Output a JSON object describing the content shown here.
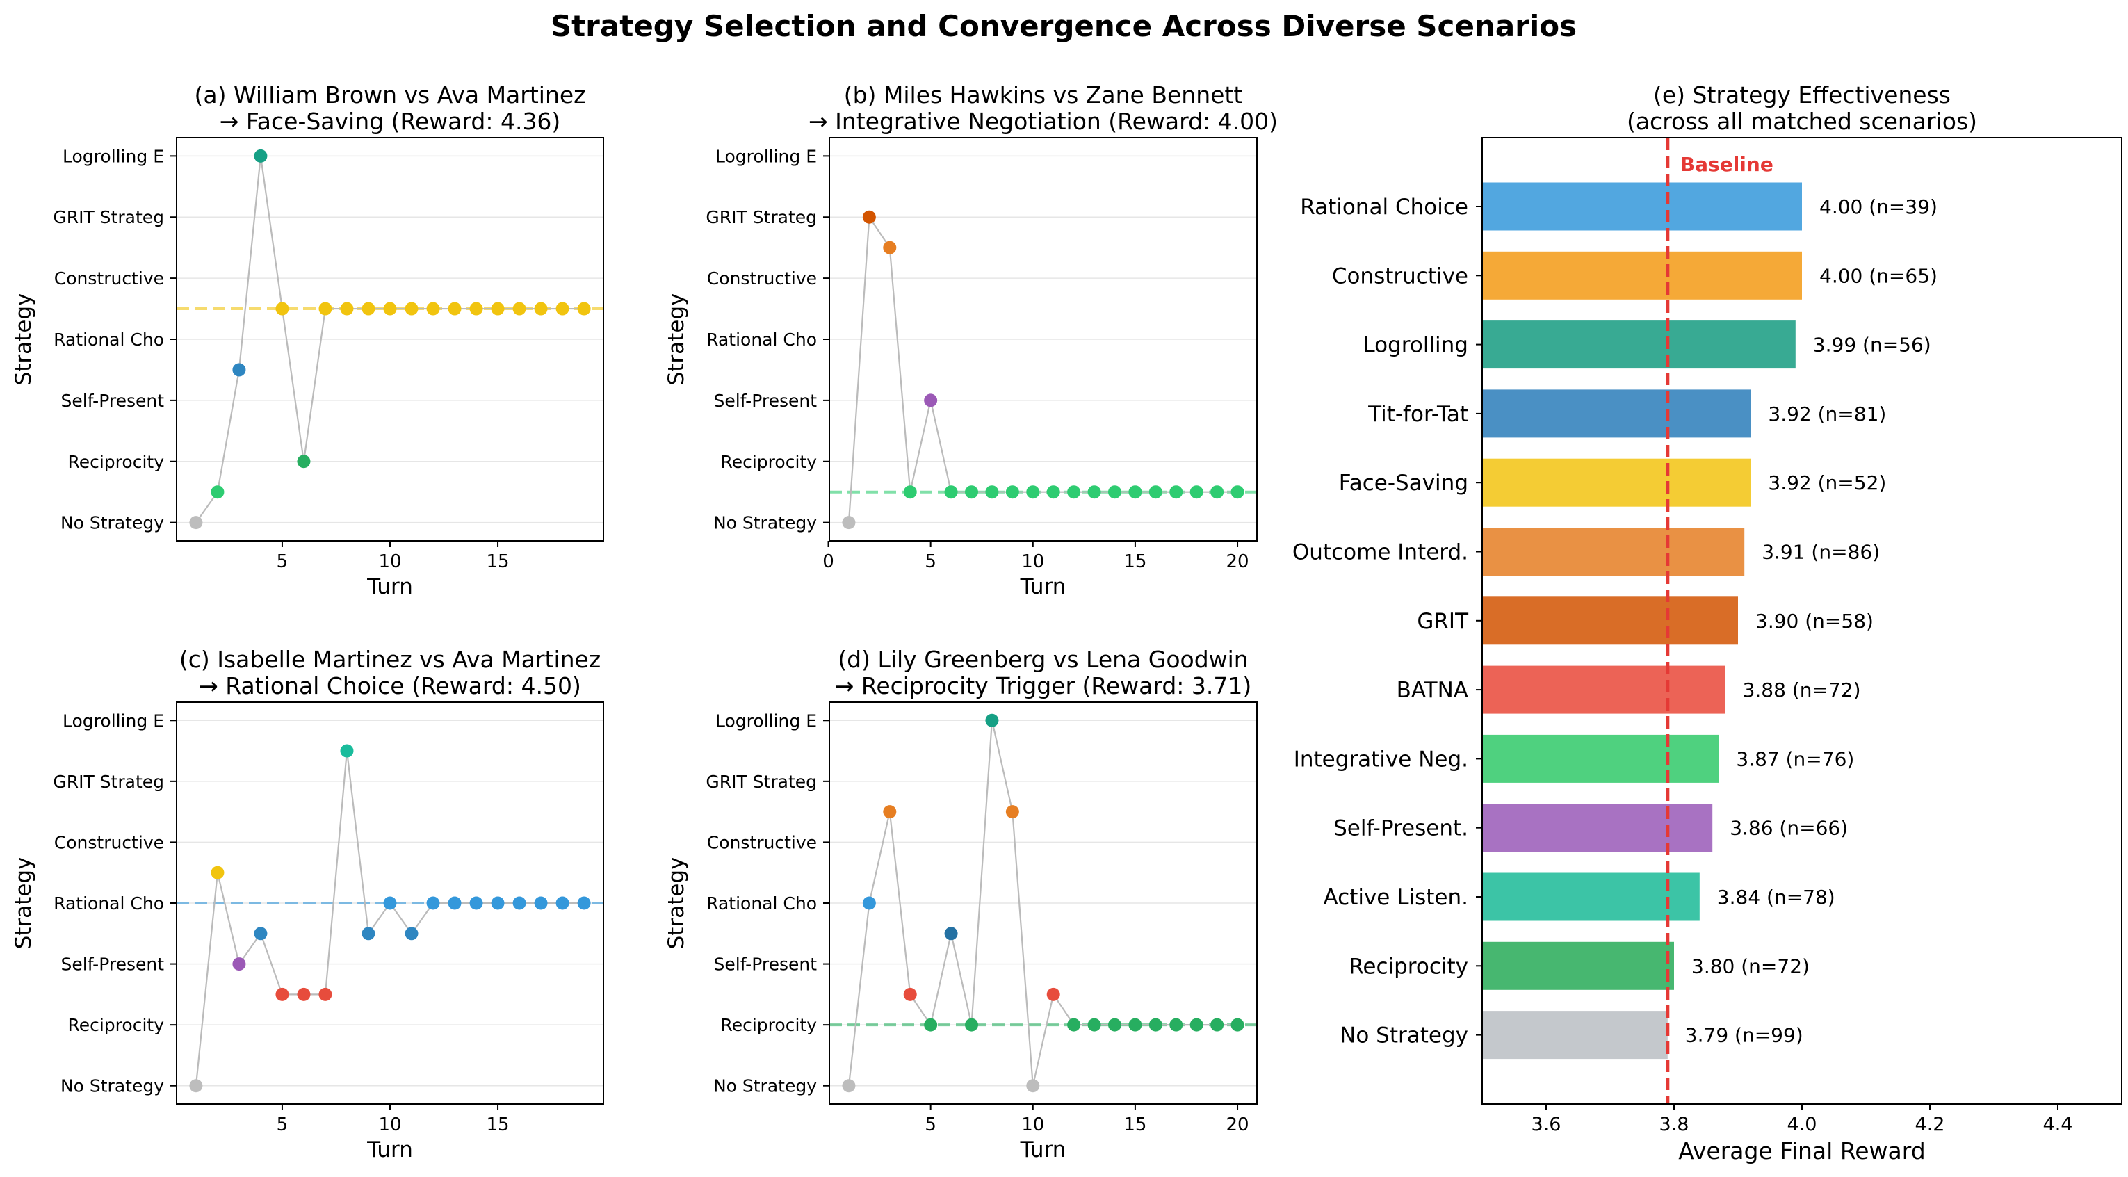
{
  "figure": {
    "title": "Strategy Selection and Convergence Across Diverse Scenarios"
  },
  "colors": {
    "No Strategy": "#bdbdbd",
    "Reciprocity": "#2ecc71",
    "Self-Present": "#9b59b6",
    "Rational Cho": "#3498db",
    "Constructive": "#f1c40f",
    "GRIT Strateg": "#d35400",
    "Logrolling E": "#16a085",
    "connector": "#bbbbbb"
  },
  "chart_data": [
    {
      "id": "a",
      "type": "scatter",
      "title": "(a) William Brown vs Ava Martinez\n→ Face-Saving  (Reward: 4.36)",
      "xlabel": "Turn",
      "ylabel": "Strategy",
      "xlim": [
        0.1,
        19.9
      ],
      "xticks": [
        5,
        10,
        15
      ],
      "ylim": [
        -0.3,
        6.3
      ],
      "yticklabels": [
        "No Strategy",
        "Reciprocity ",
        "Self-Present",
        "Rational Cho",
        "Constructive",
        "GRIT Strateg",
        "Logrolling E"
      ],
      "reference_line": {
        "y": 3.5,
        "color": "#f1c40f"
      },
      "points": [
        {
          "x": 1,
          "y": 0,
          "color": "#bdbdbd"
        },
        {
          "x": 2,
          "y": 0.5,
          "color": "#2ecc71"
        },
        {
          "x": 3,
          "y": 2.5,
          "color": "#2e86c1"
        },
        {
          "x": 4,
          "y": 6,
          "color": "#16a085"
        },
        {
          "x": 5,
          "y": 3.5,
          "color": "#f1c40f"
        },
        {
          "x": 6,
          "y": 1,
          "color": "#27ae60"
        },
        {
          "x": 7,
          "y": 3.5,
          "color": "#f1c40f"
        },
        {
          "x": 8,
          "y": 3.5,
          "color": "#f1c40f"
        },
        {
          "x": 9,
          "y": 3.5,
          "color": "#f1c40f"
        },
        {
          "x": 10,
          "y": 3.5,
          "color": "#f1c40f"
        },
        {
          "x": 11,
          "y": 3.5,
          "color": "#f1c40f"
        },
        {
          "x": 12,
          "y": 3.5,
          "color": "#f1c40f"
        },
        {
          "x": 13,
          "y": 3.5,
          "color": "#f1c40f"
        },
        {
          "x": 14,
          "y": 3.5,
          "color": "#f1c40f"
        },
        {
          "x": 15,
          "y": 3.5,
          "color": "#f1c40f"
        },
        {
          "x": 16,
          "y": 3.5,
          "color": "#f1c40f"
        },
        {
          "x": 17,
          "y": 3.5,
          "color": "#f1c40f"
        },
        {
          "x": 18,
          "y": 3.5,
          "color": "#f1c40f"
        },
        {
          "x": 19,
          "y": 3.5,
          "color": "#f1c40f"
        }
      ]
    },
    {
      "id": "b",
      "type": "scatter",
      "title": "(b) Miles Hawkins vs Zane Bennett\n→ Integrative Negotiation  (Reward: 4.00)",
      "xlabel": "Turn",
      "ylabel": "Strategy",
      "xlim": [
        0.05,
        20.95
      ],
      "xticks": [
        0,
        5,
        10,
        15,
        20
      ],
      "ylim": [
        -0.3,
        6.3
      ],
      "yticklabels": [
        "No Strategy",
        "Reciprocity ",
        "Self-Present",
        "Rational Cho",
        "Constructive",
        "GRIT Strateg",
        "Logrolling E"
      ],
      "reference_line": {
        "y": 0.5,
        "color": "#2ecc71"
      },
      "points": [
        {
          "x": 1,
          "y": 0,
          "color": "#bdbdbd"
        },
        {
          "x": 2,
          "y": 5,
          "color": "#d35400"
        },
        {
          "x": 3,
          "y": 4.5,
          "color": "#e67e22"
        },
        {
          "x": 4,
          "y": 0.5,
          "color": "#2ecc71"
        },
        {
          "x": 5,
          "y": 2,
          "color": "#9b59b6"
        },
        {
          "x": 6,
          "y": 0.5,
          "color": "#2ecc71"
        },
        {
          "x": 7,
          "y": 0.5,
          "color": "#2ecc71"
        },
        {
          "x": 8,
          "y": 0.5,
          "color": "#2ecc71"
        },
        {
          "x": 9,
          "y": 0.5,
          "color": "#2ecc71"
        },
        {
          "x": 10,
          "y": 0.5,
          "color": "#2ecc71"
        },
        {
          "x": 11,
          "y": 0.5,
          "color": "#2ecc71"
        },
        {
          "x": 12,
          "y": 0.5,
          "color": "#2ecc71"
        },
        {
          "x": 13,
          "y": 0.5,
          "color": "#2ecc71"
        },
        {
          "x": 14,
          "y": 0.5,
          "color": "#2ecc71"
        },
        {
          "x": 15,
          "y": 0.5,
          "color": "#2ecc71"
        },
        {
          "x": 16,
          "y": 0.5,
          "color": "#2ecc71"
        },
        {
          "x": 17,
          "y": 0.5,
          "color": "#2ecc71"
        },
        {
          "x": 18,
          "y": 0.5,
          "color": "#2ecc71"
        },
        {
          "x": 19,
          "y": 0.5,
          "color": "#2ecc71"
        },
        {
          "x": 20,
          "y": 0.5,
          "color": "#2ecc71"
        }
      ]
    },
    {
      "id": "c",
      "type": "scatter",
      "title": "(c) Isabelle Martinez vs Ava Martinez\n→ Rational Choice  (Reward: 4.50)",
      "xlabel": "Turn",
      "ylabel": "Strategy",
      "xlim": [
        0.1,
        19.9
      ],
      "xticks": [
        5,
        10,
        15
      ],
      "ylim": [
        -0.3,
        6.3
      ],
      "yticklabels": [
        "No Strategy",
        "Reciprocity ",
        "Self-Present",
        "Rational Cho",
        "Constructive",
        "GRIT Strateg",
        "Logrolling E"
      ],
      "reference_line": {
        "y": 3,
        "color": "#3498db"
      },
      "points": [
        {
          "x": 1,
          "y": 0,
          "color": "#bdbdbd"
        },
        {
          "x": 2,
          "y": 3.5,
          "color": "#f1c40f"
        },
        {
          "x": 3,
          "y": 2,
          "color": "#9b59b6"
        },
        {
          "x": 4,
          "y": 2.5,
          "color": "#2e86c1"
        },
        {
          "x": 5,
          "y": 1.5,
          "color": "#e74c3c"
        },
        {
          "x": 6,
          "y": 1.5,
          "color": "#e74c3c"
        },
        {
          "x": 7,
          "y": 1.5,
          "color": "#e74c3c"
        },
        {
          "x": 8,
          "y": 5.5,
          "color": "#1abc9c"
        },
        {
          "x": 9,
          "y": 2.5,
          "color": "#2e86c1"
        },
        {
          "x": 10,
          "y": 3,
          "color": "#3498db"
        },
        {
          "x": 11,
          "y": 2.5,
          "color": "#2e86c1"
        },
        {
          "x": 12,
          "y": 3,
          "color": "#3498db"
        },
        {
          "x": 13,
          "y": 3,
          "color": "#3498db"
        },
        {
          "x": 14,
          "y": 3,
          "color": "#3498db"
        },
        {
          "x": 15,
          "y": 3,
          "color": "#3498db"
        },
        {
          "x": 16,
          "y": 3,
          "color": "#3498db"
        },
        {
          "x": 17,
          "y": 3,
          "color": "#3498db"
        },
        {
          "x": 18,
          "y": 3,
          "color": "#3498db"
        },
        {
          "x": 19,
          "y": 3,
          "color": "#3498db"
        }
      ]
    },
    {
      "id": "d",
      "type": "scatter",
      "title": "(d) Lily Greenberg vs Lena Goodwin\n→ Reciprocity Trigger  (Reward: 3.71)",
      "xlabel": "Turn",
      "ylabel": "Strategy",
      "xlim": [
        0.05,
        20.95
      ],
      "xticks": [
        5,
        10,
        15,
        20
      ],
      "ylim": [
        -0.3,
        6.3
      ],
      "yticklabels": [
        "No Strategy",
        "Reciprocity ",
        "Self-Present",
        "Rational Cho",
        "Constructive",
        "GRIT Strateg",
        "Logrolling E"
      ],
      "reference_line": {
        "y": 1,
        "color": "#27ae60"
      },
      "points": [
        {
          "x": 1,
          "y": 0,
          "color": "#bdbdbd"
        },
        {
          "x": 2,
          "y": 3,
          "color": "#3498db"
        },
        {
          "x": 3,
          "y": 4.5,
          "color": "#e67e22"
        },
        {
          "x": 4,
          "y": 1.5,
          "color": "#e74c3c"
        },
        {
          "x": 5,
          "y": 1,
          "color": "#27ae60"
        },
        {
          "x": 6,
          "y": 2.5,
          "color": "#2471a3"
        },
        {
          "x": 7,
          "y": 1,
          "color": "#27ae60"
        },
        {
          "x": 8,
          "y": 6,
          "color": "#16a085"
        },
        {
          "x": 9,
          "y": 4.5,
          "color": "#e67e22"
        },
        {
          "x": 10,
          "y": 0,
          "color": "#bdbdbd"
        },
        {
          "x": 11,
          "y": 1.5,
          "color": "#e74c3c"
        },
        {
          "x": 12,
          "y": 1,
          "color": "#27ae60"
        },
        {
          "x": 13,
          "y": 1,
          "color": "#27ae60"
        },
        {
          "x": 14,
          "y": 1,
          "color": "#27ae60"
        },
        {
          "x": 15,
          "y": 1,
          "color": "#27ae60"
        },
        {
          "x": 16,
          "y": 1,
          "color": "#27ae60"
        },
        {
          "x": 17,
          "y": 1,
          "color": "#27ae60"
        },
        {
          "x": 18,
          "y": 1,
          "color": "#27ae60"
        },
        {
          "x": 19,
          "y": 1,
          "color": "#27ae60"
        },
        {
          "x": 20,
          "y": 1,
          "color": "#27ae60"
        }
      ]
    },
    {
      "id": "e",
      "type": "bar",
      "orientation": "horizontal",
      "title": "(e) Strategy Effectiveness\n(across all matched scenarios)",
      "xlabel": "Average Final Reward",
      "xlim": [
        3.5,
        4.5
      ],
      "xticks": [
        3.6,
        3.8,
        4.0,
        4.2,
        4.4
      ],
      "baseline": {
        "x": 3.79,
        "label": "Baseline",
        "color": "#e53935"
      },
      "bars": [
        {
          "label": "Rational Choice",
          "value": 4.0,
          "n": 39,
          "text": "4.00 (n=39)",
          "color": "#52a7e0"
        },
        {
          "label": "Constructive",
          "value": 4.0,
          "n": 65,
          "text": "4.00 (n=65)",
          "color": "#f5a937"
        },
        {
          "label": "Logrolling",
          "value": 3.99,
          "n": 56,
          "text": "3.99 (n=56)",
          "color": "#38aa93"
        },
        {
          "label": "Tit-for-Tat",
          "value": 3.92,
          "n": 81,
          "text": "3.92 (n=81)",
          "color": "#4a90c4"
        },
        {
          "label": "Face-Saving",
          "value": 3.92,
          "n": 52,
          "text": "3.92 (n=52)",
          "color": "#f4cc34"
        },
        {
          "label": "Outcome Interd.",
          "value": 3.91,
          "n": 86,
          "text": "3.91 (n=86)",
          "color": "#e99144"
        },
        {
          "label": "GRIT",
          "value": 3.9,
          "n": 58,
          "text": "3.90 (n=58)",
          "color": "#d96d27"
        },
        {
          "label": "BATNA",
          "value": 3.88,
          "n": 72,
          "text": "3.88 (n=72)",
          "color": "#ec6356"
        },
        {
          "label": "Integrative Neg.",
          "value": 3.87,
          "n": 76,
          "text": "3.87 (n=76)",
          "color": "#4fd17f"
        },
        {
          "label": "Self-Present.",
          "value": 3.86,
          "n": 66,
          "text": "3.86 (n=66)",
          "color": "#a872c2"
        },
        {
          "label": "Active Listen.",
          "value": 3.84,
          "n": 78,
          "text": "3.84 (n=78)",
          "color": "#3cc4a6"
        },
        {
          "label": "Reciprocity",
          "value": 3.8,
          "n": 72,
          "text": "3.80 (n=72)",
          "color": "#47b770"
        },
        {
          "label": "No Strategy",
          "value": 3.79,
          "n": 99,
          "text": "3.79 (n=99)",
          "color": "#c4c8cc"
        }
      ]
    }
  ]
}
